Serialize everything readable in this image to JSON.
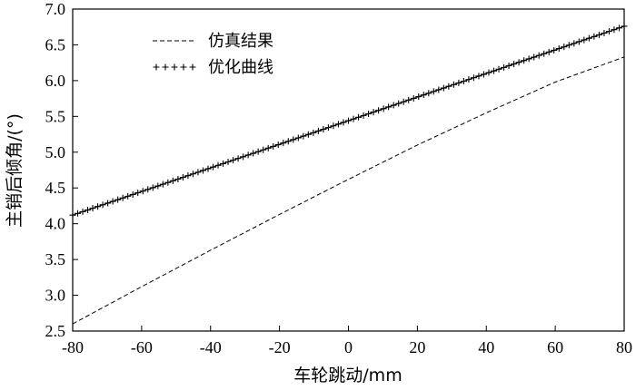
{
  "chart_data": {
    "type": "line",
    "title": "",
    "xlabel": "车轮跳动/mm",
    "ylabel": "主销后倾角/(°)",
    "xlim": [
      -80,
      80
    ],
    "ylim": [
      2.5,
      7.0
    ],
    "xticks": [
      "-80",
      "-60",
      "-40",
      "-20",
      "0",
      "20",
      "40",
      "60",
      "80"
    ],
    "yticks": [
      "2.5",
      "3.0",
      "3.5",
      "4.0",
      "4.5",
      "5.0",
      "5.5",
      "6.0",
      "6.5",
      "7.0"
    ],
    "grid": false,
    "legend_position": "top-left",
    "series": [
      {
        "name": "仿真结果",
        "style": "dashed",
        "color": "#000000",
        "x": [
          -80,
          -60,
          -40,
          -20,
          0,
          20,
          40,
          60,
          80
        ],
        "y": [
          2.6,
          3.12,
          3.63,
          4.13,
          4.62,
          5.1,
          5.55,
          5.98,
          6.33
        ]
      },
      {
        "name": "优化曲线",
        "style": "plus-markers",
        "color": "#000000",
        "x": [
          -80,
          -60,
          -40,
          -20,
          0,
          20,
          40,
          60,
          80
        ],
        "y": [
          4.12,
          4.45,
          4.78,
          5.11,
          5.44,
          5.77,
          6.1,
          6.43,
          6.76
        ]
      }
    ]
  }
}
